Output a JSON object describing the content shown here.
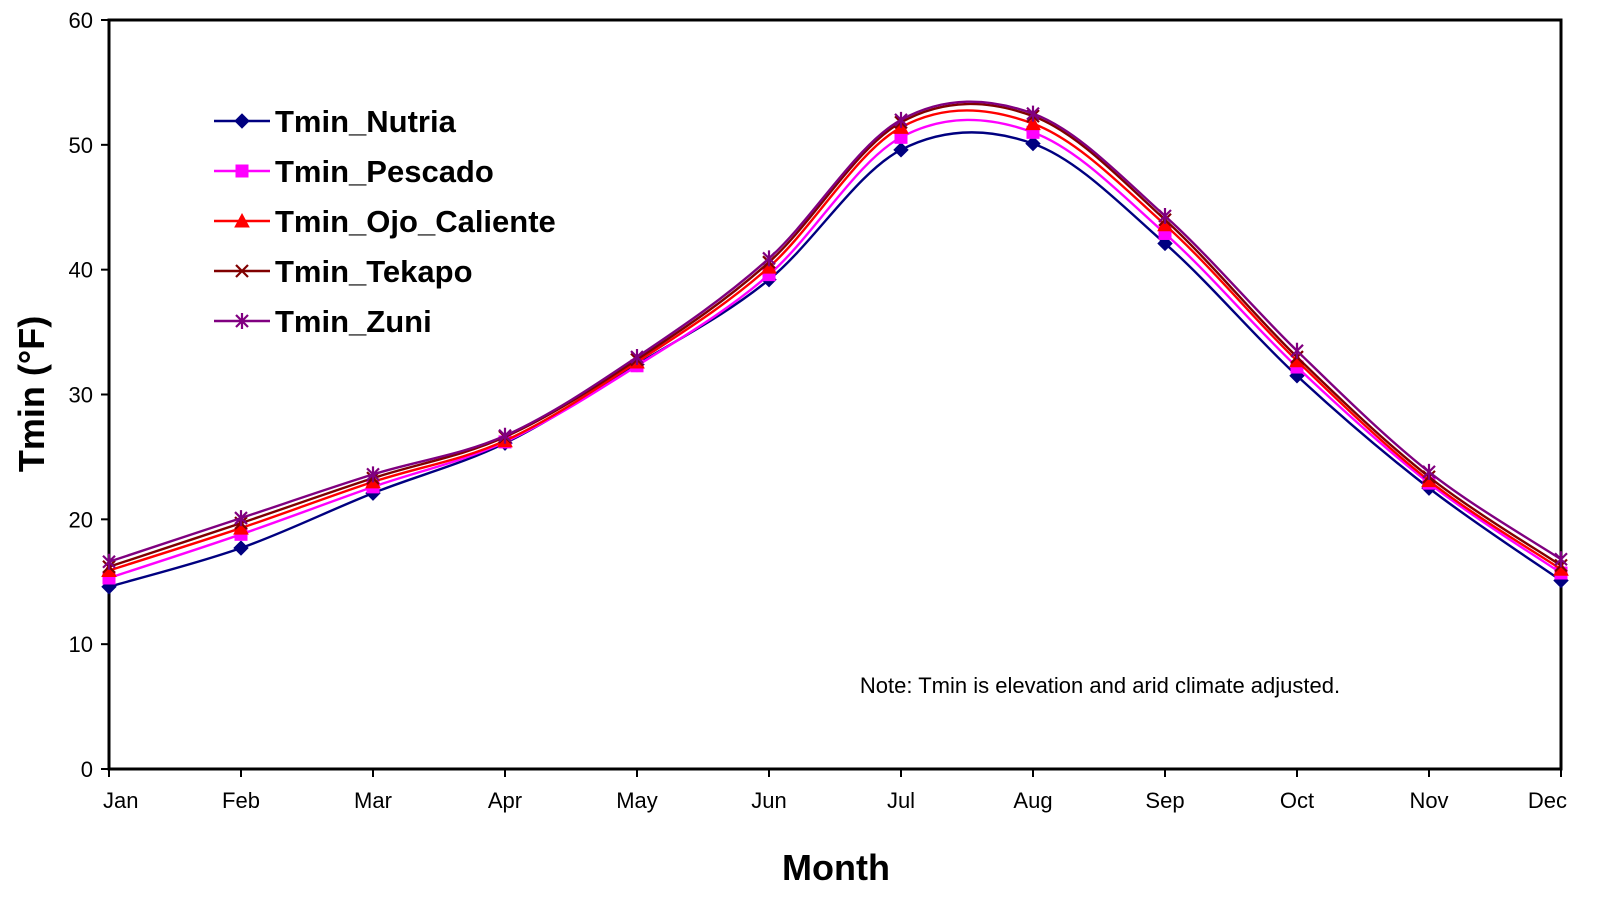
{
  "chart_data": {
    "type": "line",
    "title": "",
    "xlabel": "Month",
    "ylabel": "Tmin (°F)",
    "categories": [
      "Jan",
      "Feb",
      "Mar",
      "Apr",
      "May",
      "Jun",
      "Jul",
      "Aug",
      "Sep",
      "Oct",
      "Nov",
      "Dec"
    ],
    "ylim": [
      0,
      60
    ],
    "yticks": [
      0,
      10,
      20,
      30,
      40,
      50,
      60
    ],
    "grid": false,
    "smoothed": true,
    "legend_position": "top-left",
    "annotation": "Note: Tmin is elevation and arid climate adjusted.",
    "series": [
      {
        "name": "Tmin_Nutria",
        "color": "#000080",
        "marker": "diamond",
        "values": [
          14.6,
          17.7,
          22.1,
          26.1,
          32.4,
          39.2,
          49.6,
          50.1,
          42.1,
          31.5,
          22.5,
          15.1
        ]
      },
      {
        "name": "Tmin_Pescado",
        "color": "#FF00FF",
        "marker": "square",
        "values": [
          15.3,
          18.8,
          22.6,
          26.2,
          32.3,
          39.6,
          50.6,
          51.0,
          42.9,
          32.2,
          22.9,
          15.7
        ]
      },
      {
        "name": "Tmin_Ojo_Caliente",
        "color": "#FF0000",
        "marker": "triangle",
        "values": [
          15.9,
          19.3,
          23.0,
          26.3,
          32.6,
          40.2,
          51.4,
          51.7,
          43.6,
          32.7,
          23.1,
          16.0
        ]
      },
      {
        "name": "Tmin_Tekapo",
        "color": "#800000",
        "marker": "x",
        "values": [
          16.2,
          19.7,
          23.3,
          26.6,
          32.8,
          40.6,
          51.8,
          52.3,
          44.0,
          33.0,
          23.4,
          16.3
        ]
      },
      {
        "name": "Tmin_Zuni",
        "color": "#800080",
        "marker": "asterisk",
        "values": [
          16.6,
          20.1,
          23.6,
          26.7,
          33.0,
          40.9,
          52.0,
          52.5,
          44.3,
          33.5,
          23.8,
          16.8
        ]
      }
    ]
  }
}
